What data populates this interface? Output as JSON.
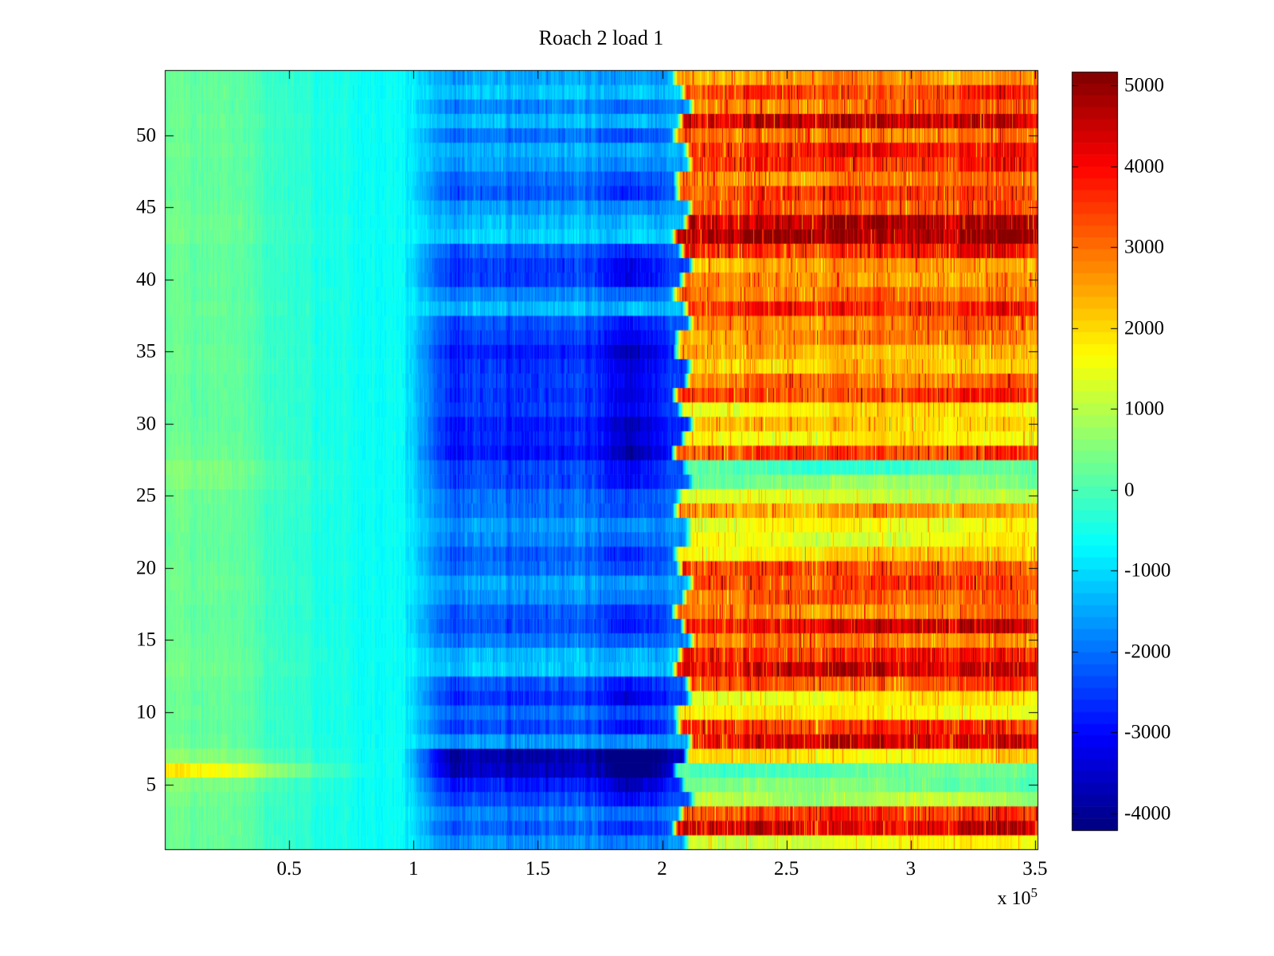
{
  "title": "Roach 2 load 1",
  "chart_data": {
    "type": "heatmap",
    "title": "Roach 2 load 1",
    "colormap": "jet",
    "x_axis": {
      "tick_labels": [
        "0.5",
        "1",
        "1.5",
        "2",
        "2.5",
        "3",
        "3.5"
      ],
      "tick_values": [
        0.5,
        1,
        1.5,
        2,
        2.5,
        3,
        3.5
      ],
      "range": [
        0,
        3.51
      ],
      "unit_multiplier": 100000,
      "scale_label_prefix": "x 10",
      "scale_label_exponent": "5"
    },
    "y_axis": {
      "tick_labels": [
        "5",
        "10",
        "15",
        "20",
        "25",
        "30",
        "35",
        "40",
        "45",
        "50"
      ],
      "tick_values": [
        5,
        10,
        15,
        20,
        25,
        30,
        35,
        40,
        45,
        50
      ],
      "n_rows": 54,
      "range": [
        0.5,
        54.5
      ]
    },
    "colorbar": {
      "tick_labels": [
        "5000",
        "4000",
        "3000",
        "2000",
        "1000",
        "0",
        "-1000",
        "-2000",
        "-3000",
        "-4000"
      ],
      "tick_values": [
        5000,
        4000,
        3000,
        2000,
        1000,
        0,
        -1000,
        -2000,
        -3000,
        -4000
      ],
      "cmin": -4210,
      "cmax": 5170,
      "n_levels": 64
    },
    "zones": {
      "description": "per-row segment means: left = value near x=0 (fades to cyan_edge by green_zone_end), mid = value in blue zone, warm = value right of warm_boundary",
      "green_zone_end": 0.95,
      "blue_zone_start": 1.15,
      "warm_boundary": 2.1,
      "cyan_edge_value": -650,
      "dark_stripe_center": 1.88,
      "dark_stripe_halfwidth": 0.08
    },
    "rows_order": "index 0 = row 1 (bottom) ... index 53 = row 54 (top); each entry [left, mid, warm]",
    "rows": [
      [
        350,
        -1700,
        1500
      ],
      [
        350,
        -2200,
        4400
      ],
      [
        350,
        -1800,
        3600
      ],
      [
        450,
        -2400,
        900
      ],
      [
        600,
        -2800,
        300
      ],
      [
        1900,
        -3600,
        100
      ],
      [
        700,
        -3800,
        1900
      ],
      [
        350,
        -1600,
        4400
      ],
      [
        300,
        -2400,
        3600
      ],
      [
        350,
        -2000,
        1700
      ],
      [
        300,
        -2600,
        1700
      ],
      [
        350,
        -2300,
        3300
      ],
      [
        450,
        -1200,
        4500
      ],
      [
        400,
        -1300,
        3800
      ],
      [
        350,
        -1900,
        2800
      ],
      [
        300,
        -2300,
        4300
      ],
      [
        300,
        -2200,
        2800
      ],
      [
        350,
        -1700,
        3200
      ],
      [
        400,
        -1500,
        3500
      ],
      [
        350,
        -2000,
        3300
      ],
      [
        300,
        -2200,
        2000
      ],
      [
        300,
        -1800,
        1500
      ],
      [
        350,
        -1600,
        1600
      ],
      [
        350,
        -2000,
        2600
      ],
      [
        400,
        -2000,
        1200
      ],
      [
        550,
        -2400,
        500
      ],
      [
        600,
        -2400,
        -100
      ],
      [
        400,
        -2900,
        3500
      ],
      [
        350,
        -2700,
        1800
      ],
      [
        300,
        -2800,
        2200
      ],
      [
        300,
        -2500,
        1800
      ],
      [
        300,
        -2600,
        3500
      ],
      [
        300,
        -2500,
        3000
      ],
      [
        350,
        -2600,
        2200
      ],
      [
        350,
        -2800,
        2400
      ],
      [
        300,
        -2500,
        2800
      ],
      [
        300,
        -2300,
        2900
      ],
      [
        350,
        -1300,
        3800
      ],
      [
        300,
        -1800,
        3000
      ],
      [
        300,
        -2500,
        2700
      ],
      [
        300,
        -2500,
        2500
      ],
      [
        300,
        -2200,
        3800
      ],
      [
        400,
        -1100,
        5000
      ],
      [
        400,
        -1300,
        4800
      ],
      [
        350,
        -1600,
        3400
      ],
      [
        300,
        -2200,
        3500
      ],
      [
        300,
        -2000,
        2800
      ],
      [
        300,
        -1600,
        3700
      ],
      [
        350,
        -1400,
        4000
      ],
      [
        300,
        -2000,
        3000
      ],
      [
        350,
        -1300,
        4500
      ],
      [
        300,
        -1800,
        3000
      ],
      [
        300,
        -1200,
        3500
      ],
      [
        300,
        -1500,
        2700
      ]
    ]
  }
}
